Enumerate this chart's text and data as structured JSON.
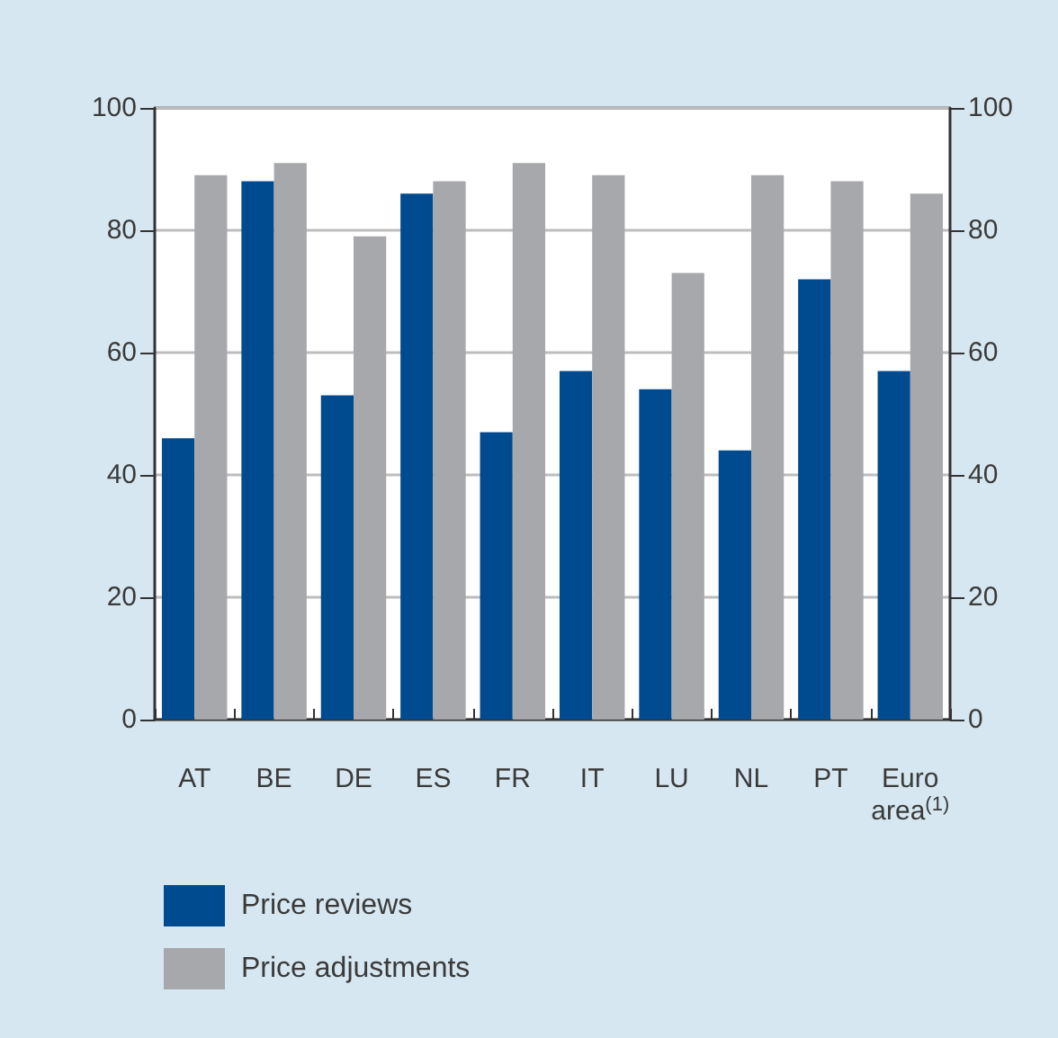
{
  "chart_data": {
    "type": "bar",
    "categories": [
      "AT",
      "BE",
      "DE",
      "ES",
      "FR",
      "IT",
      "LU",
      "NL",
      "PT",
      "Euro area$^{(1)}$"
    ],
    "series": [
      {
        "name": "Price reviews",
        "color": "#004a8f",
        "values": [
          46,
          88,
          53,
          86,
          47,
          57,
          54,
          44,
          72,
          57
        ]
      },
      {
        "name": "Price adjustments",
        "color": "#a7a8ac",
        "values": [
          89,
          91,
          79,
          88,
          91,
          89,
          73,
          89,
          88,
          86
        ]
      }
    ],
    "ylim": [
      0,
      100
    ],
    "yticks": [
      0,
      20,
      40,
      60,
      80,
      100
    ],
    "y2lim": [
      0,
      100
    ],
    "y2ticks": [
      0,
      20,
      40,
      60,
      80,
      100
    ],
    "grid": "y",
    "legend": "bottom left"
  }
}
